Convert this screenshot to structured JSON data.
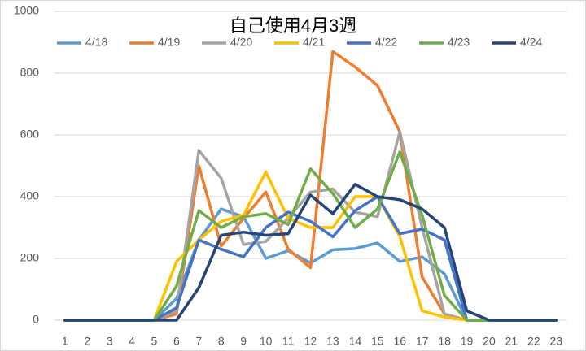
{
  "chart_data": {
    "type": "line",
    "title": "自己使用4月3週",
    "categories": [
      "1",
      "2",
      "3",
      "4",
      "5",
      "6",
      "7",
      "8",
      "9",
      "10",
      "11",
      "12",
      "13",
      "14",
      "15",
      "16",
      "17",
      "18",
      "19",
      "20",
      "21",
      "22",
      "23"
    ],
    "series": [
      {
        "name": "4/18",
        "color": "#5b9bd5",
        "values": [
          0,
          0,
          0,
          0,
          0,
          70,
          260,
          360,
          335,
          200,
          225,
          185,
          228,
          232,
          250,
          190,
          205,
          150,
          0,
          0,
          0,
          0,
          0
        ]
      },
      {
        "name": "4/19",
        "color": "#ed7d31",
        "values": [
          0,
          0,
          0,
          0,
          0,
          20,
          500,
          240,
          330,
          415,
          230,
          170,
          870,
          820,
          760,
          610,
          140,
          20,
          0,
          0,
          0,
          0,
          0
        ]
      },
      {
        "name": "4/20",
        "color": "#a5a5a5",
        "values": [
          0,
          0,
          0,
          0,
          0,
          30,
          550,
          460,
          245,
          255,
          330,
          415,
          425,
          350,
          335,
          610,
          300,
          20,
          0,
          0,
          0,
          0,
          0
        ]
      },
      {
        "name": "4/21",
        "color": "#ffc000",
        "values": [
          0,
          0,
          0,
          0,
          0,
          190,
          260,
          320,
          340,
          480,
          330,
          300,
          300,
          400,
          400,
          270,
          30,
          10,
          0,
          0,
          0,
          0,
          0
        ]
      },
      {
        "name": "4/22",
        "color": "#4472c4",
        "values": [
          0,
          0,
          0,
          0,
          0,
          40,
          260,
          230,
          205,
          300,
          350,
          320,
          270,
          355,
          400,
          280,
          295,
          260,
          0,
          0,
          0,
          0,
          0
        ]
      },
      {
        "name": "4/23",
        "color": "#70ad47",
        "values": [
          0,
          0,
          0,
          0,
          0,
          110,
          355,
          300,
          335,
          345,
          310,
          490,
          410,
          300,
          360,
          545,
          340,
          80,
          0,
          0,
          0,
          0,
          0
        ]
      },
      {
        "name": "4/24",
        "color": "#264478",
        "values": [
          0,
          0,
          0,
          0,
          0,
          0,
          105,
          275,
          285,
          275,
          280,
          405,
          345,
          440,
          400,
          390,
          360,
          300,
          30,
          0,
          0,
          0,
          0
        ]
      }
    ],
    "ylim": [
      0,
      1000
    ],
    "yticks": [
      0,
      200,
      400,
      600,
      800,
      1000
    ],
    "grid": true
  }
}
